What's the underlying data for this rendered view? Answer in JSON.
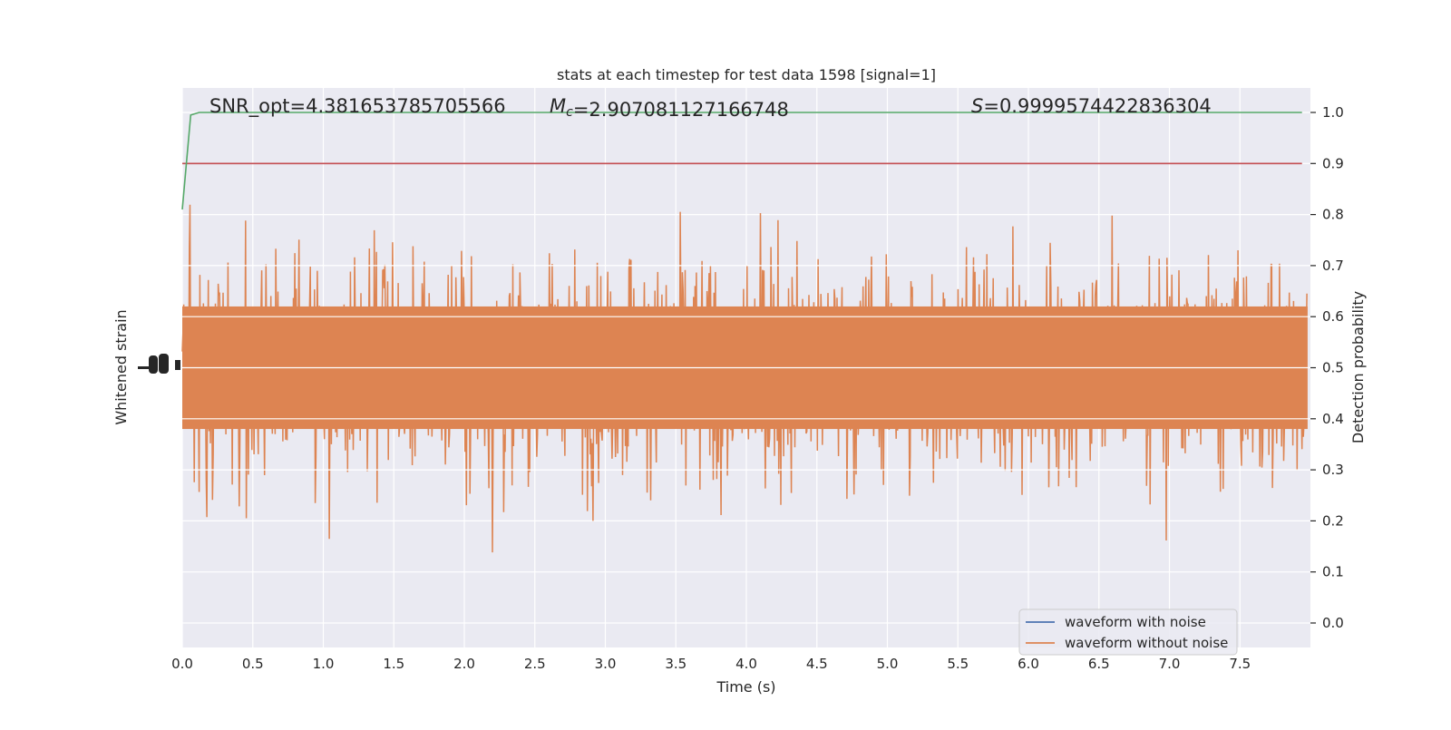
{
  "chart_data": {
    "type": "line",
    "title": "stats at each timestep for test data 1598 [signal=1]",
    "xlabel": "Time (s)",
    "ylabel_left": "Whitened strain",
    "ylabel_right": "Detection probability",
    "xlim": [
      0.0,
      8.0
    ],
    "ylim_right": [
      -0.05,
      1.05
    ],
    "x_ticks": [
      "0.0",
      "0.5",
      "1.0",
      "1.5",
      "2.0",
      "2.5",
      "3.0",
      "3.5",
      "4.0",
      "4.5",
      "5.0",
      "5.5",
      "6.0",
      "6.5",
      "7.0",
      "7.5"
    ],
    "y_ticks_right": [
      "0.0",
      "0.1",
      "0.2",
      "0.3",
      "0.4",
      "0.5",
      "0.6",
      "0.7",
      "0.8",
      "0.9",
      "1.0"
    ],
    "grid": true,
    "background": "#EAEAF2",
    "annotations": [
      {
        "parts": [
          {
            "t": "SNR_opt=4.381653785705566",
            "i": false
          }
        ]
      },
      {
        "parts": [
          {
            "t": "M",
            "i": true
          },
          {
            "t": "c",
            "i": true,
            "sub": true
          },
          {
            "t": "=2.907081127166748",
            "i": false
          }
        ]
      },
      {
        "parts": [
          {
            "t": "S",
            "i": true
          },
          {
            "t": "=0.9999574422836304",
            "i": false
          }
        ]
      }
    ],
    "legend": {
      "placement": "lower-right",
      "entries": [
        "waveform with noise",
        "waveform without noise"
      ]
    },
    "series": [
      {
        "name": "waveform with noise",
        "color": "#4C72B0"
      },
      {
        "name": "waveform without noise",
        "color": "#DD8452",
        "approx_center": 0.5,
        "approx_range": [
          0.0,
          1.0
        ]
      },
      {
        "color": "#55A868",
        "x": [
          0.0,
          0.06,
          0.12,
          0.2,
          1.0,
          2.0,
          3.0,
          4.0,
          5.0,
          6.0,
          7.0,
          7.94
        ],
        "y": [
          0.81,
          0.995,
          1.0,
          1.0,
          1.0,
          1.0,
          1.0,
          1.0,
          1.0,
          1.0,
          1.0,
          1.0
        ]
      },
      {
        "color": "#C44E52",
        "x": [
          0.0,
          7.94
        ],
        "y": [
          0.9,
          0.9
        ]
      }
    ]
  }
}
